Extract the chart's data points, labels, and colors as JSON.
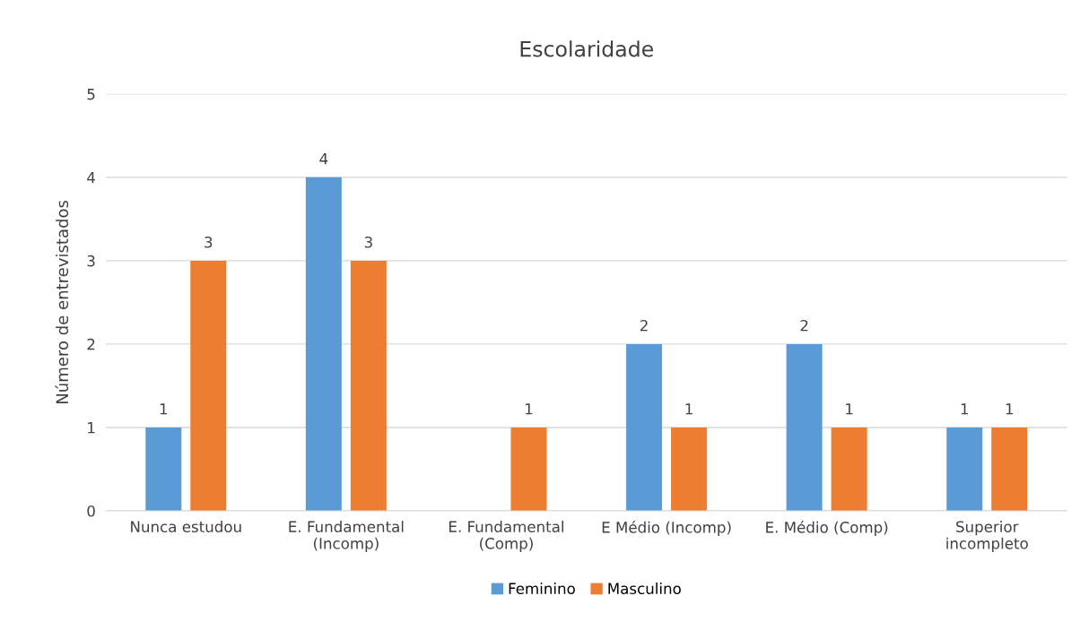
{
  "chart_data": {
    "type": "bar",
    "title": "Escolaridade",
    "ylabel": "Número de entrevistados",
    "categories": [
      "Nunca estudou",
      "E. Fundamental\n(Incomp)",
      "E. Fundamental\n(Comp)",
      "E Médio (Incomp)",
      "E. Médio (Comp)",
      "Superior\nincompleto"
    ],
    "series": [
      {
        "name": "Feminino",
        "color": "#5b9bd5",
        "values": [
          1,
          4,
          0,
          2,
          2,
          1
        ],
        "value_labels": [
          "1",
          "4",
          null,
          "2",
          "2",
          "1"
        ]
      },
      {
        "name": "Masculino",
        "color": "#ed7d31",
        "values": [
          3,
          3,
          1,
          1,
          1,
          1
        ],
        "value_labels": [
          "3",
          "3",
          "1",
          "1",
          "1",
          "1"
        ]
      }
    ],
    "ylim": [
      0,
      5
    ],
    "yticks": [
      0,
      1,
      2,
      3,
      4,
      5
    ],
    "grid": "y",
    "legend": "bottom"
  }
}
